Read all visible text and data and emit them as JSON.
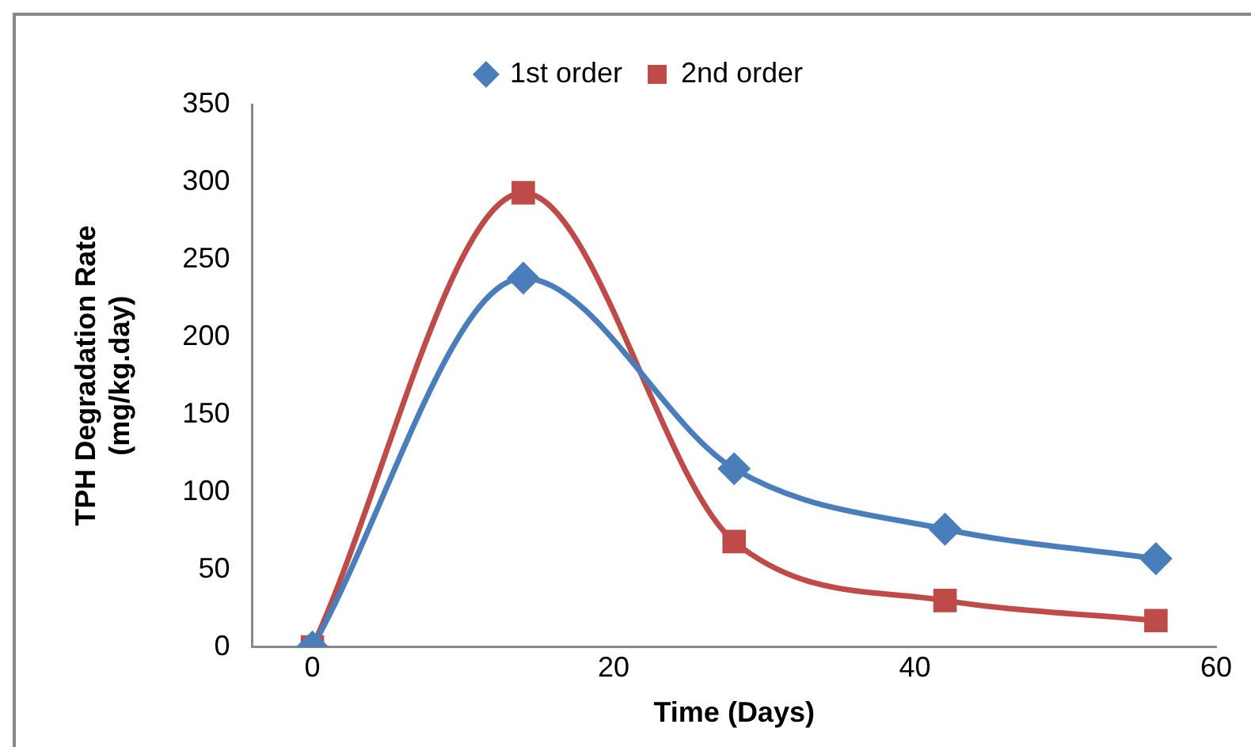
{
  "chart_data": {
    "type": "line",
    "xlabel": "Time (Days)",
    "ylabel": "TPH Degradation Rate\n(mg/kg.day)",
    "x": [
      0,
      14,
      28,
      42,
      56
    ],
    "series": [
      {
        "name": "1st order",
        "color": "#4a7ebb",
        "marker": "diamond",
        "values": [
          0,
          238,
          115,
          76,
          57
        ]
      },
      {
        "name": "2nd order",
        "color": "#be4b48",
        "marker": "square",
        "values": [
          0,
          293,
          68,
          30,
          17
        ]
      }
    ],
    "xlim": [
      -4,
      60
    ],
    "xticks": [
      {
        "value": -4,
        "label": null
      },
      0,
      20,
      40,
      60
    ],
    "ylim": [
      0,
      350
    ],
    "yticks": [
      0,
      50,
      100,
      150,
      200,
      250,
      300,
      350
    ],
    "grid": false,
    "legend": "top",
    "line_style": "solid"
  }
}
